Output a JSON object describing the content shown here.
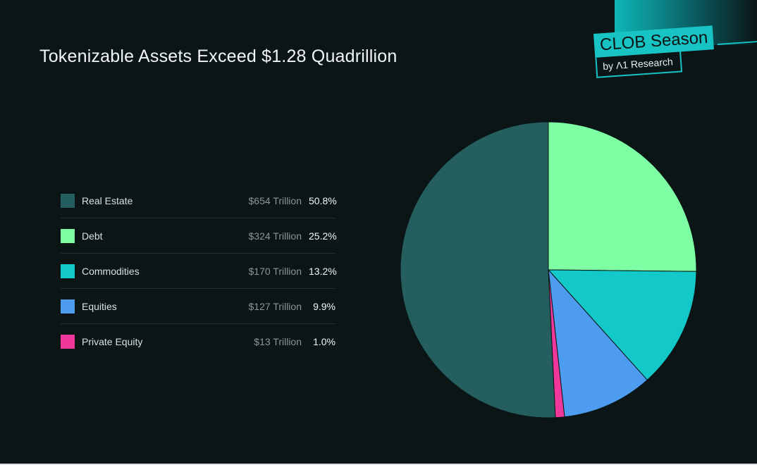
{
  "title": "Tokenizable Assets Exceed $1.28 Quadrillion",
  "brand": {
    "name": "CLOB Season",
    "sub": "by Λ1 Research"
  },
  "chart_data": {
    "type": "pie",
    "title": "Tokenizable Assets Exceed $1.28 Quadrillion",
    "slices": [
      {
        "label": "Real Estate",
        "amount": "$654 Trillion",
        "percent_label": "50.8%",
        "value": 50.8,
        "color": "#255e5e"
      },
      {
        "label": "Debt",
        "amount": "$324 Trillion",
        "percent_label": "25.2%",
        "value": 25.2,
        "color": "#7effa3"
      },
      {
        "label": "Commodities",
        "amount": "$170 Trillion",
        "percent_label": "13.2%",
        "value": 13.2,
        "color": "#13c8c8"
      },
      {
        "label": "Equities",
        "amount": "$127 Trillion",
        "percent_label": "9.9%",
        "value": 9.9,
        "color": "#4e9cf0"
      },
      {
        "label": "Private Equity",
        "amount": "$13 Trillion",
        "percent_label": "1.0%",
        "value": 1.0,
        "color": "#f0379a"
      }
    ],
    "legend_position": "left"
  }
}
